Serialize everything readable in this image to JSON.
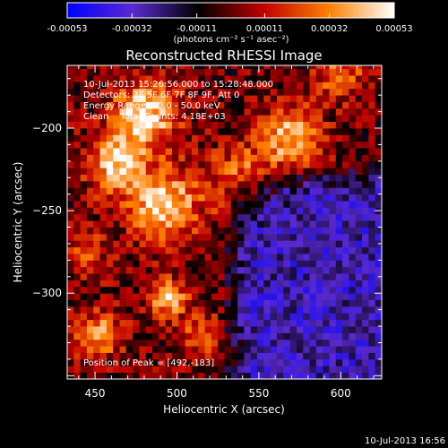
{
  "chart_data": {
    "type": "heatmap",
    "title": "Reconstructed RHESSI Image",
    "xlabel": "Heliocentric X (arcsec)",
    "ylabel": "Heliocentric Y (arcsec)",
    "xlim": [
      433,
      625
    ],
    "ylim": [
      -352,
      -162
    ],
    "x_ticks": [
      450,
      500,
      550,
      600
    ],
    "y_ticks": [
      -200,
      -250,
      -300
    ],
    "colorbar": {
      "min": -0.00053,
      "max": 0.00053,
      "tick_values": [
        -0.00053,
        -0.00032,
        -0.00011,
        0.00011,
        0.00032,
        0.00053
      ],
      "tick_labels": [
        "-0.00053",
        "-0.00032",
        "-0.00011",
        "0.00011",
        "0.00032",
        "0.00053"
      ],
      "units_label": "(photons cm⁻² s⁻¹ asec⁻²)",
      "stops": [
        "#0000ff",
        "#5a2ad0",
        "#000000",
        "#c00000",
        "#ff8000",
        "#ffffff"
      ]
    },
    "annotations": {
      "time_range": "10-Jul-2013 15:26:56.000 to 15:28:48.000",
      "detectors": "Detectors: 3F 5F 6F 7F 8F 9F, Att 0",
      "energy": "Energy Range: 20.0 - 50.0 keV",
      "clean": "Clean    Total Counts: 4.18E+03",
      "peak": "Position of Peak = [492,-183]"
    },
    "emission_sources": [
      {
        "x": 480,
        "y": -192,
        "intensity": 0.0005,
        "sigma": 14
      },
      {
        "x": 492,
        "y": -246,
        "intensity": 0.00048,
        "sigma": 15
      },
      {
        "x": 462,
        "y": -222,
        "intensity": 0.00042,
        "sigma": 12
      },
      {
        "x": 570,
        "y": -205,
        "intensity": 0.00042,
        "sigma": 13
      },
      {
        "x": 540,
        "y": -230,
        "intensity": 0.0003,
        "sigma": 14
      },
      {
        "x": 600,
        "y": -168,
        "intensity": 0.0003,
        "sigma": 10
      },
      {
        "x": 495,
        "y": -303,
        "intensity": 0.00042,
        "sigma": 8
      },
      {
        "x": 452,
        "y": -325,
        "intensity": 0.00035,
        "sigma": 10
      },
      {
        "x": 515,
        "y": -325,
        "intensity": 0.00025,
        "sigma": 9
      },
      {
        "x": 445,
        "y": -275,
        "intensity": 0.0002,
        "sigma": 10
      }
    ],
    "negative_region": {
      "x_min": 525,
      "y_max": -220,
      "intensity": -0.0003
    },
    "footer_timestamp": "10-Jul-2013 16:56"
  }
}
